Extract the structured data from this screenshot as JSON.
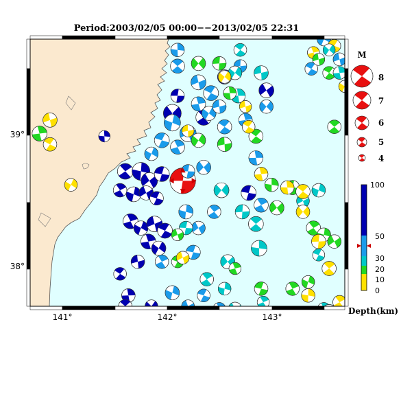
{
  "title": "Period:2003/02/05 00:00−−2013/02/05 22:31",
  "x_ticks": [
    "141°",
    "142°",
    "143°"
  ],
  "y_ticks": [
    "39°",
    "38°"
  ],
  "magnitude_legend": {
    "title": "M",
    "levels": [
      "8",
      "7",
      "6",
      "5",
      "4"
    ]
  },
  "depth_scale": {
    "label": "Depth(km)",
    "ticks": [
      "100",
      "50",
      "30",
      "20",
      "10",
      "0"
    ],
    "colors": {
      "deep": "#0000b0",
      "mid": "#1a9bea",
      "cyan": "#00c8c8",
      "green": "#22d822",
      "yellow": "#ffe000",
      "red": "#e81010"
    }
  },
  "map_colors": {
    "sea": "#e0ffff",
    "land": "#fbe9cf",
    "coast": "#555555"
  },
  "mechanisms": [
    {
      "lon": 142.15,
      "lat": 38.65,
      "m": 6.9,
      "d": "red"
    },
    {
      "lon": 141.6,
      "lat": 38.72,
      "m": 5.5,
      "d": "deep"
    },
    {
      "lon": 141.75,
      "lat": 38.72,
      "m": 5.8,
      "d": "deep"
    },
    {
      "lon": 141.83,
      "lat": 38.65,
      "m": 5.6,
      "d": "deep"
    },
    {
      "lon": 141.95,
      "lat": 38.7,
      "m": 5.4,
      "d": "deep"
    },
    {
      "lon": 141.55,
      "lat": 38.58,
      "m": 5.2,
      "d": "deep"
    },
    {
      "lon": 141.68,
      "lat": 38.55,
      "m": 5.4,
      "d": "deep"
    },
    {
      "lon": 141.8,
      "lat": 38.56,
      "m": 5.3,
      "d": "deep"
    },
    {
      "lon": 141.9,
      "lat": 38.52,
      "m": 5.2,
      "d": "deep"
    },
    {
      "lon": 141.65,
      "lat": 38.35,
      "m": 5.4,
      "d": "deep"
    },
    {
      "lon": 141.75,
      "lat": 38.3,
      "m": 5.3,
      "d": "deep"
    },
    {
      "lon": 141.88,
      "lat": 38.33,
      "m": 5.5,
      "d": "deep"
    },
    {
      "lon": 141.98,
      "lat": 38.28,
      "m": 5.4,
      "d": "deep"
    },
    {
      "lon": 141.82,
      "lat": 38.2,
      "m": 5.4,
      "d": "deep"
    },
    {
      "lon": 141.92,
      "lat": 38.15,
      "m": 5.3,
      "d": "deep"
    },
    {
      "lon": 141.72,
      "lat": 38.05,
      "m": 5.2,
      "d": "deep"
    },
    {
      "lon": 141.55,
      "lat": 37.96,
      "m": 5.1,
      "d": "deep"
    },
    {
      "lon": 141.63,
      "lat": 37.8,
      "m": 5.2,
      "d": "deep"
    },
    {
      "lon": 141.85,
      "lat": 37.72,
      "m": 5.1,
      "d": "deep"
    },
    {
      "lon": 141.7,
      "lat": 37.58,
      "m": 5.3,
      "d": "deep"
    },
    {
      "lon": 141.6,
      "lat": 37.72,
      "m": 5.2,
      "d": "deep"
    },
    {
      "lon": 141.4,
      "lat": 38.98,
      "m": 4.9,
      "d": "deep"
    },
    {
      "lon": 142.05,
      "lat": 39.15,
      "m": 5.8,
      "d": "deep"
    },
    {
      "lon": 142.1,
      "lat": 39.28,
      "m": 5.2,
      "d": "deep"
    },
    {
      "lon": 142.35,
      "lat": 39.12,
      "m": 5.5,
      "d": "deep"
    },
    {
      "lon": 142.55,
      "lat": 39.42,
      "m": 5.3,
      "d": "deep"
    },
    {
      "lon": 142.95,
      "lat": 39.32,
      "m": 5.4,
      "d": "deep"
    },
    {
      "lon": 142.78,
      "lat": 38.56,
      "m": 5.4,
      "d": "deep"
    },
    {
      "lon": 142.9,
      "lat": 38.47,
      "m": 5.3,
      "d": "mid"
    },
    {
      "lon": 142.05,
      "lat": 39.08,
      "m": 5.6,
      "d": "mid"
    },
    {
      "lon": 142.2,
      "lat": 39.0,
      "m": 5.6,
      "d": "mid"
    },
    {
      "lon": 141.95,
      "lat": 38.95,
      "m": 5.4,
      "d": "mid"
    },
    {
      "lon": 142.1,
      "lat": 38.9,
      "m": 5.3,
      "d": "mid"
    },
    {
      "lon": 141.85,
      "lat": 38.85,
      "m": 5.2,
      "d": "mid"
    },
    {
      "lon": 142.3,
      "lat": 39.38,
      "m": 5.4,
      "d": "mid"
    },
    {
      "lon": 142.42,
      "lat": 39.3,
      "m": 5.4,
      "d": "mid"
    },
    {
      "lon": 142.3,
      "lat": 39.22,
      "m": 5.3,
      "d": "mid"
    },
    {
      "lon": 142.4,
      "lat": 39.15,
      "m": 5.3,
      "d": "mid"
    },
    {
      "lon": 142.5,
      "lat": 39.2,
      "m": 5.2,
      "d": "mid"
    },
    {
      "lon": 142.55,
      "lat": 39.05,
      "m": 5.3,
      "d": "mid"
    },
    {
      "lon": 142.85,
      "lat": 38.82,
      "m": 5.3,
      "d": "mid"
    },
    {
      "lon": 142.95,
      "lat": 39.2,
      "m": 5.2,
      "d": "mid"
    },
    {
      "lon": 142.7,
      "lat": 39.5,
      "m": 5.1,
      "d": "mid"
    },
    {
      "lon": 142.1,
      "lat": 39.5,
      "m": 5.3,
      "d": "mid"
    },
    {
      "lon": 142.1,
      "lat": 39.62,
      "m": 5.2,
      "d": "mid"
    },
    {
      "lon": 142.35,
      "lat": 38.75,
      "m": 5.3,
      "d": "mid"
    },
    {
      "lon": 142.2,
      "lat": 38.72,
      "m": 5.2,
      "d": "mid"
    },
    {
      "lon": 142.45,
      "lat": 38.42,
      "m": 5.2,
      "d": "mid"
    },
    {
      "lon": 142.18,
      "lat": 38.42,
      "m": 5.3,
      "d": "mid"
    },
    {
      "lon": 142.3,
      "lat": 38.3,
      "m": 5.2,
      "d": "mid"
    },
    {
      "lon": 142.25,
      "lat": 38.12,
      "m": 5.3,
      "d": "mid"
    },
    {
      "lon": 141.95,
      "lat": 38.05,
      "m": 5.2,
      "d": "mid"
    },
    {
      "lon": 142.05,
      "lat": 37.82,
      "m": 5.3,
      "d": "mid"
    },
    {
      "lon": 142.2,
      "lat": 37.72,
      "m": 5.1,
      "d": "mid"
    },
    {
      "lon": 142.35,
      "lat": 37.8,
      "m": 5.1,
      "d": "mid"
    },
    {
      "lon": 142.5,
      "lat": 37.7,
      "m": 5.1,
      "d": "mid"
    },
    {
      "lon": 143.5,
      "lat": 39.7,
      "m": 5.2,
      "d": "mid"
    },
    {
      "lon": 143.65,
      "lat": 39.55,
      "m": 5.1,
      "d": "mid"
    },
    {
      "lon": 143.38,
      "lat": 39.48,
      "m": 5.1,
      "d": "mid"
    },
    {
      "lon": 142.75,
      "lat": 39.1,
      "m": 5.2,
      "d": "mid"
    },
    {
      "lon": 142.65,
      "lat": 39.45,
      "m": 5.2,
      "d": "cyan"
    },
    {
      "lon": 142.9,
      "lat": 39.45,
      "m": 5.3,
      "d": "cyan"
    },
    {
      "lon": 142.7,
      "lat": 39.62,
      "m": 5.1,
      "d": "cyan"
    },
    {
      "lon": 142.68,
      "lat": 39.28,
      "m": 5.3,
      "d": "cyan"
    },
    {
      "lon": 142.52,
      "lat": 38.58,
      "m": 5.4,
      "d": "cyan"
    },
    {
      "lon": 142.72,
      "lat": 38.42,
      "m": 5.3,
      "d": "cyan"
    },
    {
      "lon": 142.85,
      "lat": 38.33,
      "m": 5.4,
      "d": "cyan"
    },
    {
      "lon": 142.88,
      "lat": 38.15,
      "m": 5.5,
      "d": "cyan"
    },
    {
      "lon": 142.58,
      "lat": 38.05,
      "m": 5.3,
      "d": "cyan"
    },
    {
      "lon": 142.18,
      "lat": 38.3,
      "m": 5.2,
      "d": "cyan"
    },
    {
      "lon": 142.38,
      "lat": 37.92,
      "m": 5.2,
      "d": "cyan"
    },
    {
      "lon": 142.55,
      "lat": 37.85,
      "m": 5.1,
      "d": "cyan"
    },
    {
      "lon": 142.65,
      "lat": 37.7,
      "m": 5.2,
      "d": "cyan"
    },
    {
      "lon": 142.8,
      "lat": 37.67,
      "m": 5.2,
      "d": "cyan"
    },
    {
      "lon": 142.92,
      "lat": 37.75,
      "m": 5.0,
      "d": "cyan"
    },
    {
      "lon": 143.45,
      "lat": 38.58,
      "m": 5.2,
      "d": "cyan"
    },
    {
      "lon": 143.3,
      "lat": 38.5,
      "m": 5.1,
      "d": "cyan"
    },
    {
      "lon": 143.45,
      "lat": 38.1,
      "m": 5.0,
      "d": "cyan"
    },
    {
      "lon": 143.5,
      "lat": 37.7,
      "m": 5.1,
      "d": "cyan"
    },
    {
      "lon": 141.08,
      "lat": 38.62,
      "m": 5.1,
      "d": "yellow"
    },
    {
      "lon": 140.88,
      "lat": 39.1,
      "m": 5.3,
      "d": "yellow"
    },
    {
      "lon": 140.88,
      "lat": 38.92,
      "m": 5.2,
      "d": "yellow"
    },
    {
      "lon": 140.78,
      "lat": 39.0,
      "m": 5.4,
      "d": "green"
    },
    {
      "lon": 142.3,
      "lat": 38.95,
      "m": 5.3,
      "d": "green"
    },
    {
      "lon": 142.55,
      "lat": 38.92,
      "m": 5.3,
      "d": "green"
    },
    {
      "lon": 142.85,
      "lat": 38.98,
      "m": 5.3,
      "d": "green"
    },
    {
      "lon": 142.6,
      "lat": 39.3,
      "m": 5.1,
      "d": "green"
    },
    {
      "lon": 142.3,
      "lat": 39.52,
      "m": 5.3,
      "d": "green"
    },
    {
      "lon": 142.5,
      "lat": 39.52,
      "m": 5.2,
      "d": "green"
    },
    {
      "lon": 143.6,
      "lat": 39.05,
      "m": 5.2,
      "d": "green"
    },
    {
      "lon": 143.0,
      "lat": 38.62,
      "m": 5.2,
      "d": "green"
    },
    {
      "lon": 143.05,
      "lat": 38.45,
      "m": 5.3,
      "d": "green"
    },
    {
      "lon": 143.2,
      "lat": 38.6,
      "m": 5.3,
      "d": "green"
    },
    {
      "lon": 143.4,
      "lat": 38.3,
      "m": 5.3,
      "d": "green"
    },
    {
      "lon": 143.5,
      "lat": 38.25,
      "m": 5.2,
      "d": "green"
    },
    {
      "lon": 143.6,
      "lat": 38.2,
      "m": 5.2,
      "d": "green"
    },
    {
      "lon": 142.9,
      "lat": 37.85,
      "m": 5.2,
      "d": "green"
    },
    {
      "lon": 143.2,
      "lat": 37.85,
      "m": 5.2,
      "d": "green"
    },
    {
      "lon": 143.35,
      "lat": 37.9,
      "m": 5.1,
      "d": "green"
    },
    {
      "lon": 142.1,
      "lat": 38.25,
      "m": 5.0,
      "d": "green"
    },
    {
      "lon": 142.1,
      "lat": 38.05,
      "m": 5.0,
      "d": "green"
    },
    {
      "lon": 142.65,
      "lat": 38.0,
      "m": 5.0,
      "d": "green"
    },
    {
      "lon": 142.25,
      "lat": 37.67,
      "m": 5.0,
      "d": "green"
    },
    {
      "lon": 142.75,
      "lat": 39.2,
      "m": 5.0,
      "d": "yellow"
    },
    {
      "lon": 142.78,
      "lat": 39.05,
      "m": 5.1,
      "d": "yellow"
    },
    {
      "lon": 142.9,
      "lat": 38.7,
      "m": 5.2,
      "d": "yellow"
    },
    {
      "lon": 142.55,
      "lat": 39.42,
      "m": 5.1,
      "d": "yellow"
    },
    {
      "lon": 142.2,
      "lat": 39.02,
      "m": 5.0,
      "d": "yellow"
    },
    {
      "lon": 143.3,
      "lat": 38.57,
      "m": 5.3,
      "d": "yellow"
    },
    {
      "lon": 143.15,
      "lat": 38.6,
      "m": 5.2,
      "d": "yellow"
    },
    {
      "lon": 143.3,
      "lat": 38.42,
      "m": 5.2,
      "d": "yellow"
    },
    {
      "lon": 143.45,
      "lat": 38.2,
      "m": 5.3,
      "d": "yellow"
    },
    {
      "lon": 143.55,
      "lat": 38.0,
      "m": 5.3,
      "d": "yellow"
    },
    {
      "lon": 143.35,
      "lat": 37.8,
      "m": 5.2,
      "d": "yellow"
    },
    {
      "lon": 143.55,
      "lat": 37.68,
      "m": 5.3,
      "d": "yellow"
    },
    {
      "lon": 143.6,
      "lat": 37.62,
      "m": 5.2,
      "d": "yellow"
    },
    {
      "lon": 143.65,
      "lat": 37.75,
      "m": 5.2,
      "d": "yellow"
    },
    {
      "lon": 143.3,
      "lat": 37.65,
      "m": 5.2,
      "d": "yellow"
    },
    {
      "lon": 142.7,
      "lat": 37.58,
      "m": 5.2,
      "d": "yellow"
    },
    {
      "lon": 142.9,
      "lat": 37.62,
      "m": 5.2,
      "d": "yellow"
    },
    {
      "lon": 142.85,
      "lat": 37.58,
      "m": 5.3,
      "d": "yellow"
    },
    {
      "lon": 142.3,
      "lat": 37.6,
      "m": 5.1,
      "d": "yellow"
    },
    {
      "lon": 142.15,
      "lat": 38.08,
      "m": 5.1,
      "d": "yellow"
    },
    {
      "lon": 143.6,
      "lat": 39.65,
      "m": 5.1,
      "d": "yellow"
    },
    {
      "lon": 143.4,
      "lat": 39.6,
      "m": 5.0,
      "d": "yellow"
    },
    {
      "lon": 143.7,
      "lat": 39.35,
      "m": 5.0,
      "d": "yellow"
    },
    {
      "lon": 143.45,
      "lat": 39.55,
      "m": 5.0,
      "d": "green"
    },
    {
      "lon": 143.55,
      "lat": 39.45,
      "m": 5.1,
      "d": "green"
    },
    {
      "lon": 143.65,
      "lat": 39.45,
      "m": 5.1,
      "d": "cyan"
    },
    {
      "lon": 143.55,
      "lat": 39.62,
      "m": 5.0,
      "d": "cyan"
    }
  ]
}
